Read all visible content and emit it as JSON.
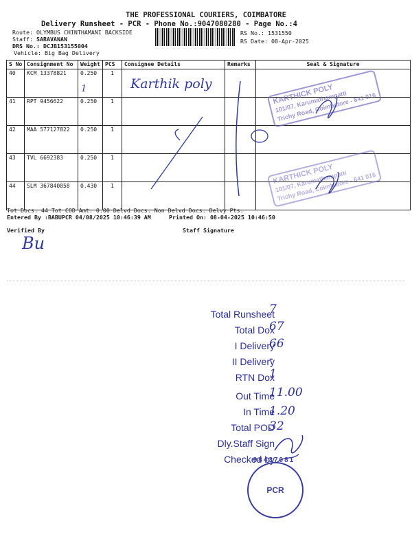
{
  "header": {
    "company": "THE PROFESSIONAL COURIERS, COIMBATORE",
    "subtitle": "Delivery Runsheet - PCR - Phone No.:9047080280 - Page No.:4",
    "route": "Route: OLYMBUS CHINTHAMANI BACKSIDE",
    "staff_label": "Staff:",
    "staff": "SARAVANAN",
    "drs_label": "DRS No.:",
    "drs": "DCJB153155004",
    "vehicle": "Vehicle: Big Bag Delivery",
    "rs_no": "RS No.: 1531550",
    "rs_date": "RS Date: 08-Apr-2025"
  },
  "table": {
    "headers": [
      "S No",
      "Consignment No",
      "Weight",
      "PCS",
      "Consignee Details",
      "Remarks",
      "Seal & Signature"
    ],
    "rows": [
      {
        "sno": "40",
        "cn": "KCM 13378821",
        "weight": "0.250",
        "pcs": "1"
      },
      {
        "sno": "41",
        "cn": "RPT 9456622",
        "weight": "0.250",
        "pcs": "1"
      },
      {
        "sno": "42",
        "cn": "MAA 577127822",
        "weight": "0.250",
        "pcs": "1"
      },
      {
        "sno": "43",
        "cn": "TVL 6692383",
        "weight": "0.250",
        "pcs": "1"
      },
      {
        "sno": "44",
        "cn": "SLM 367840858",
        "weight": "0.430",
        "pcs": "1"
      }
    ]
  },
  "footer": {
    "totals": "Tot Docs:  44    Tot COD Amt:     0.00    Delvd Docs:     Non Delvd Docs:     Delvy Pts:",
    "entered": "Entered By :BABUPCR 04/08/2025 10:46:39 AM",
    "printed": "Printed On: 08-04-2025 10:46:50",
    "verified": "Verified By",
    "staff_sig": "Staff Signature"
  },
  "handwriting": {
    "consignee_40": "Karthik poly",
    "row40_mark": "1",
    "verified_sig": "Bu"
  },
  "stamps": {
    "line1": "KARTHICK POLY",
    "line2": "101/07, Karumathampatti",
    "line3": "Trichy Road, Coimbatore - 641 016"
  },
  "summary": [
    {
      "label": "Total Runsheet",
      "value": "7"
    },
    {
      "label": "Total Dox",
      "value": "67"
    },
    {
      "label": "I Delivery",
      "value": "66"
    },
    {
      "label": "II Delivery",
      "value": "-"
    },
    {
      "label": "RTN Dox",
      "value": "1"
    },
    {
      "label": "Out Time",
      "value": "11.00"
    },
    {
      "label": "In Time",
      "value": "1.20"
    },
    {
      "label": "Total POD",
      "value": "32"
    },
    {
      "label": "Dly.Staff Sign",
      "value": ""
    },
    {
      "label": "Checked by",
      "value": ""
    }
  ],
  "pcr_seal": {
    "text": "PCR",
    "number": "98437081"
  }
}
